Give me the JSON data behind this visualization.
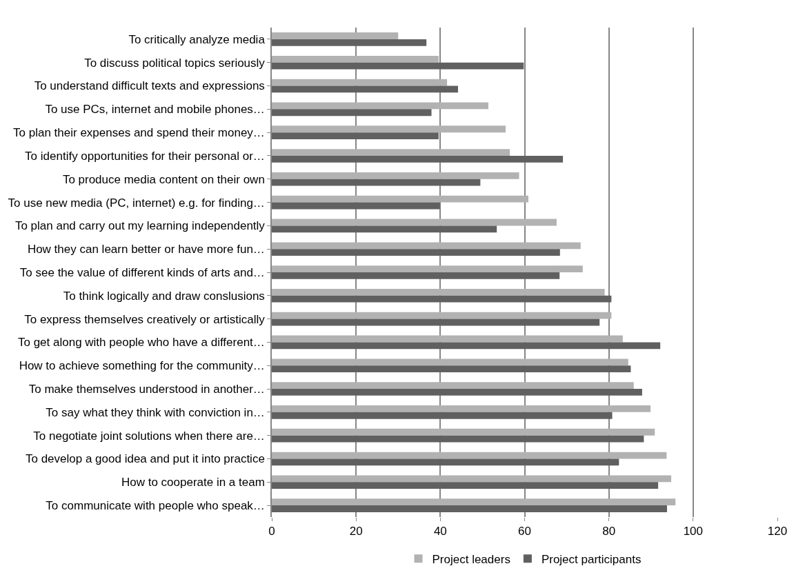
{
  "chart_data": {
    "type": "bar",
    "orientation": "horizontal",
    "categories": [
      "To critically analyze media",
      "To discuss political topics seriously",
      "To understand difficult texts and expressions",
      "To use PCs, internet and mobile phones…",
      "To plan their expenses and spend their money…",
      "To identify opportunities for their personal or…",
      "To produce media content on their own",
      "To use new media (PC, internet) e.g. for finding…",
      "To plan and carry out my learning independently",
      "How they can learn better or have more fun…",
      "To see the value of different kinds of arts and…",
      "To think logically and draw conslusions",
      "To express themselves creatively or artistically",
      "To get along with people who have a different…",
      "How to achieve something for the community…",
      "To make themselves understood in another…",
      "To say what they think with conviction in…",
      "To negotiate joint solutions when there are…",
      "To develop a good idea and put it into practice",
      "How to cooperate in a team",
      "To communicate with people who speak…"
    ],
    "series": [
      {
        "name": "Project leaders",
        "color": "#b2b2b2",
        "values": [
          30,
          39.6,
          41.6,
          51.4,
          55.5,
          56.5,
          58.7,
          60.9,
          67.6,
          73.3,
          73.8,
          79.0,
          80.6,
          83.3,
          84.6,
          85.9,
          89.9,
          90.9,
          93.7,
          94.8,
          95.8
        ]
      },
      {
        "name": "Project participants",
        "color": "#606060",
        "values": [
          36.7,
          59.8,
          44.2,
          37.9,
          39.6,
          69.1,
          49.5,
          39.9,
          53.4,
          68.4,
          68.3,
          80.6,
          77.8,
          92.2,
          85.2,
          87.9,
          80.8,
          88.3,
          82.4,
          91.7,
          93.8
        ]
      }
    ],
    "xlim": [
      0,
      120
    ],
    "xticks": [
      0,
      20,
      40,
      60,
      80,
      100,
      120
    ],
    "grid": "x",
    "legend": "bottom"
  }
}
